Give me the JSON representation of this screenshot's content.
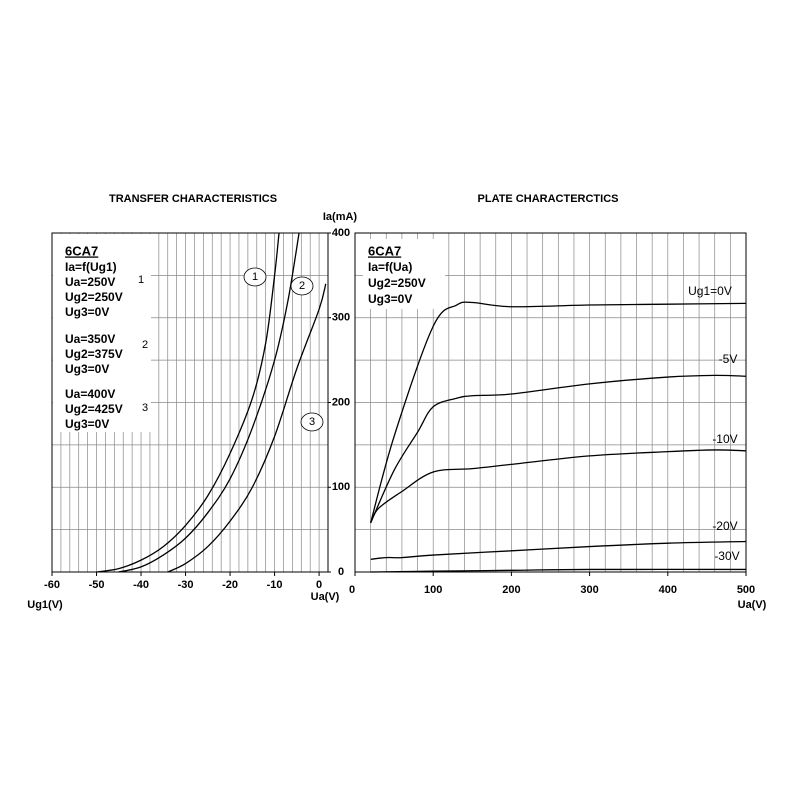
{
  "chart_data": [
    {
      "type": "line",
      "title": "TRANSFER CHARACTERISTICS",
      "y_label": "Ia(mA)",
      "x_label": "Ug1(V)",
      "x_label_right": "Ua(V)",
      "xlim": [
        -60,
        2
      ],
      "xticks": [
        -60,
        -50,
        -40,
        -30,
        -20,
        -10,
        0
      ],
      "ylim": [
        0,
        400
      ],
      "yticks": [
        0,
        100,
        200,
        300,
        400
      ],
      "grid": true,
      "grid_step": {
        "x": 2,
        "y": 50
      },
      "color": "#000000",
      "legend_lines": [
        "6CA7",
        "Ia=f(Ug1)"
      ],
      "conditions": [
        {
          "marker": "1",
          "lines": [
            "Ua=250V",
            "Ug2=250V",
            "Ug3=0V"
          ]
        },
        {
          "marker": "2",
          "lines": [
            "Ua=350V",
            "Ug2=375V",
            "Ug3=0V"
          ]
        },
        {
          "marker": "3",
          "lines": [
            "Ua=400V",
            "Ug2=425V",
            "Ug3=0V"
          ]
        }
      ],
      "series": [
        {
          "name": "1",
          "x": [
            -50,
            -45,
            -40,
            -35,
            -30,
            -25,
            -20,
            -15,
            -12,
            -10,
            -9
          ],
          "values": [
            0,
            4,
            14,
            30,
            55,
            90,
            140,
            205,
            270,
            350,
            400
          ]
        },
        {
          "name": "2",
          "x": [
            -45,
            -40,
            -35,
            -30,
            -25,
            -20,
            -15,
            -10,
            -7,
            -4.5
          ],
          "values": [
            0,
            6,
            20,
            40,
            70,
            110,
            170,
            250,
            320,
            400
          ]
        },
        {
          "name": "3",
          "x": [
            -34,
            -30,
            -25,
            -20,
            -15,
            -10,
            -5,
            0,
            1.5
          ],
          "values": [
            0,
            10,
            30,
            60,
            100,
            160,
            240,
            310,
            340
          ]
        }
      ]
    },
    {
      "type": "line",
      "title": "PLATE CHARACTERCTICS",
      "x_label": "Ua(V)",
      "xlim": [
        0,
        500
      ],
      "xticks": [
        0,
        100,
        200,
        300,
        400,
        500
      ],
      "ylim": [
        0,
        400
      ],
      "grid": true,
      "grid_step": {
        "x": 20,
        "y": 50
      },
      "color": "#000000",
      "legend_lines": [
        "6CA7",
        "Ia=f(Ua)",
        "Ug2=250V",
        "Ug3=0V"
      ],
      "series": [
        {
          "name": "Ug1=0V",
          "x": [
            20,
            50,
            100,
            130,
            150,
            200,
            300,
            400,
            500
          ],
          "values": [
            58,
            160,
            290,
            315,
            318,
            313,
            315,
            316,
            317
          ]
        },
        {
          "name": "-5V",
          "x": [
            20,
            50,
            80,
            100,
            130,
            150,
            200,
            300,
            400,
            460,
            500
          ],
          "values": [
            58,
            120,
            165,
            195,
            205,
            208,
            210,
            222,
            230,
            232,
            231
          ]
        },
        {
          "name": "-10V",
          "x": [
            20,
            30,
            60,
            100,
            150,
            200,
            300,
            400,
            460,
            500
          ],
          "values": [
            58,
            75,
            95,
            118,
            122,
            127,
            137,
            142,
            144,
            143
          ]
        },
        {
          "name": "-20V",
          "x": [
            20,
            40,
            60,
            100,
            200,
            300,
            400,
            500
          ],
          "values": [
            15,
            17,
            17,
            20,
            25,
            30,
            34,
            36
          ]
        },
        {
          "name": "-30V",
          "x": [
            20,
            100,
            200,
            300,
            500
          ],
          "values": [
            0,
            1,
            2,
            3,
            3
          ]
        }
      ]
    }
  ]
}
